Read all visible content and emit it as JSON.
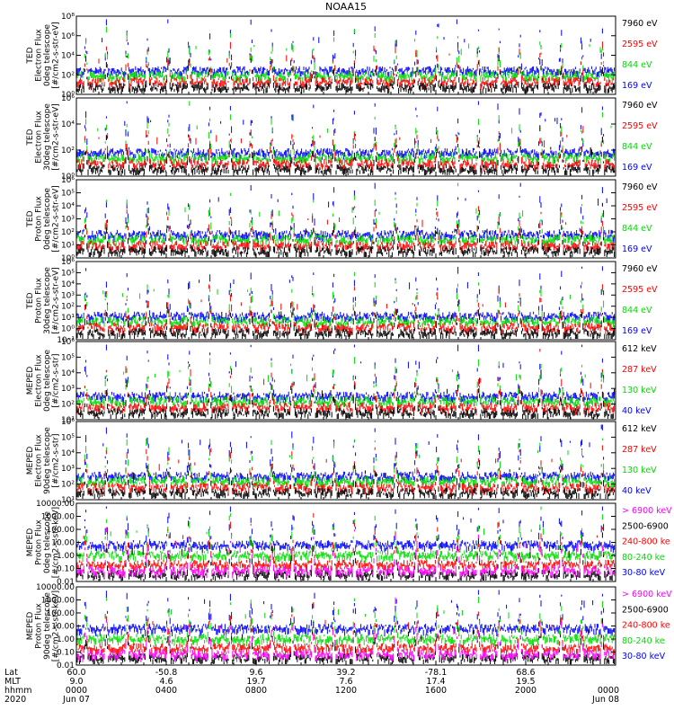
{
  "title": "NOAA15",
  "colors": {
    "blue": "#0000ff",
    "red": "#ff0000",
    "green": "#00dd00",
    "black": "#000000",
    "magenta": "#ff00ff"
  },
  "chart_data": [
    {
      "type": "line",
      "ylabel": [
        "TED",
        "Electron Flux",
        "0deg telescope",
        "[#/cm2-s-str-eV]"
      ],
      "yscale": "log",
      "ylim": [
        1,
        100000000
      ],
      "yticks": [
        "10⁰",
        "10²",
        "10⁴",
        "10⁶",
        "10⁸"
      ],
      "legend": [
        {
          "label": "7960 eV",
          "color": "black"
        },
        {
          "label": "2595 eV",
          "color": "red"
        },
        {
          "label": "844 eV",
          "color": "green"
        },
        {
          "label": "169 eV",
          "color": "blue"
        }
      ]
    },
    {
      "type": "line",
      "ylabel": [
        "TED",
        "Electron Flux",
        "30deg telescope",
        "[#/cm2-s-str-eV]"
      ],
      "yscale": "log",
      "ylim": [
        1,
        1000000
      ],
      "yticks": [
        "10⁰",
        "10²",
        "10⁴",
        "10⁶"
      ],
      "legend": [
        {
          "label": "7960 eV",
          "color": "black"
        },
        {
          "label": "2595 eV",
          "color": "red"
        },
        {
          "label": "844 eV",
          "color": "green"
        },
        {
          "label": "169 eV",
          "color": "blue"
        }
      ]
    },
    {
      "type": "line",
      "ylabel": [
        "TED",
        "Proton Flux",
        "0deg telescope",
        "[#/cm2-s-str-eV]"
      ],
      "yscale": "log",
      "ylim": [
        1,
        1000000
      ],
      "yticks": [
        "10⁰",
        "10¹",
        "10²",
        "10³",
        "10⁴",
        "10⁵",
        "10⁶"
      ],
      "legend": [
        {
          "label": "7960 eV",
          "color": "black"
        },
        {
          "label": "2595 eV",
          "color": "red"
        },
        {
          "label": "844 eV",
          "color": "green"
        },
        {
          "label": "169 eV",
          "color": "blue"
        }
      ]
    },
    {
      "type": "line",
      "ylabel": [
        "TED",
        "Proton Flux",
        "30deg telescope",
        "[#/cm2-s-str-eV]"
      ],
      "yscale": "log",
      "ylim": [
        0.1,
        1000000
      ],
      "yticks": [
        "10⁻¹",
        "10⁰",
        "10¹",
        "10²",
        "10³",
        "10⁴",
        "10⁵",
        "10⁶"
      ],
      "legend": [
        {
          "label": "7960 eV",
          "color": "black"
        },
        {
          "label": "2595 eV",
          "color": "red"
        },
        {
          "label": "844 eV",
          "color": "green"
        },
        {
          "label": "169 eV",
          "color": "blue"
        }
      ]
    },
    {
      "type": "line",
      "ylabel": [
        "MEPED",
        "Electron Flux",
        "0deg telescope",
        "[#/cm2-s-str]"
      ],
      "yscale": "log",
      "ylim": [
        10,
        1000000
      ],
      "yticks": [
        "10¹",
        "10²",
        "10³",
        "10⁴",
        "10⁵",
        "10⁶"
      ],
      "legend": [
        {
          "label": "612 keV",
          "color": "black"
        },
        {
          "label": "287 keV",
          "color": "red"
        },
        {
          "label": "130 keV",
          "color": "green"
        },
        {
          "label": "40 keV",
          "color": "blue"
        }
      ]
    },
    {
      "type": "line",
      "ylabel": [
        "MEPED",
        "Electron Flux",
        "90deg telescope",
        "[#/cm2-s-str]"
      ],
      "yscale": "log",
      "ylim": [
        10,
        1000000
      ],
      "yticks": [
        "10¹",
        "10²",
        "10³",
        "10⁴",
        "10⁵",
        "10⁶"
      ],
      "legend": [
        {
          "label": "612 keV",
          "color": "black"
        },
        {
          "label": "287 keV",
          "color": "red"
        },
        {
          "label": "130 keV",
          "color": "green"
        },
        {
          "label": "40 keV",
          "color": "blue"
        }
      ]
    },
    {
      "type": "line",
      "ylabel": [
        "MEPED",
        "Proton Flux",
        "0deg telescope",
        "[#/cm2-s-str-keV]"
      ],
      "yscale": "log",
      "ylim": [
        0.01,
        10000
      ],
      "yticks": [
        "0.01",
        "0.10",
        "1.00",
        "10.00",
        "100.00",
        "1000.00",
        "10000.00"
      ],
      "legend": [
        {
          "label": "> 6900 keV",
          "color": "magenta"
        },
        {
          "label": "2500-6900",
          "color": "black"
        },
        {
          "label": "240-800 ke",
          "color": "red"
        },
        {
          "label": "80-240 ke",
          "color": "green"
        },
        {
          "label": "30-80 keV",
          "color": "blue"
        }
      ]
    },
    {
      "type": "line",
      "ylabel": [
        "MEPED",
        "Proton Flux",
        "90deg telescope",
        "[#/cm2-s-str-keV]"
      ],
      "yscale": "log",
      "ylim": [
        0.01,
        10000
      ],
      "yticks": [
        "0.01",
        "0.10",
        "1.00",
        "10.00",
        "100.00",
        "1000.00",
        "10000.00"
      ],
      "legend": [
        {
          "label": "> 6900 keV",
          "color": "magenta"
        },
        {
          "label": "2500-6900",
          "color": "black"
        },
        {
          "label": "240-800 ke",
          "color": "red"
        },
        {
          "label": "80-240 ke",
          "color": "green"
        },
        {
          "label": "30-80 keV",
          "color": "blue"
        }
      ]
    }
  ],
  "x_axis": {
    "row_labels": [
      "Lat",
      "MLT",
      "hhmm",
      "2020"
    ],
    "ticks": [
      {
        "lat": "60.0",
        "mlt": "9.0",
        "hhmm": "0000",
        "date": "Jun 07"
      },
      {
        "lat": "-50.8",
        "mlt": "4.6",
        "hhmm": "0400",
        "date": ""
      },
      {
        "lat": "9.6",
        "mlt": "19.7",
        "hhmm": "0800",
        "date": ""
      },
      {
        "lat": "39.2",
        "mlt": "7.6",
        "hhmm": "1200",
        "date": ""
      },
      {
        "lat": "-78.1",
        "mlt": "17.4",
        "hhmm": "1600",
        "date": ""
      },
      {
        "lat": "68.6",
        "mlt": "19.5",
        "hhmm": "2000",
        "date": ""
      },
      {
        "lat": "",
        "mlt": "",
        "hhmm": "0000",
        "date": "Jun 08"
      }
    ]
  }
}
